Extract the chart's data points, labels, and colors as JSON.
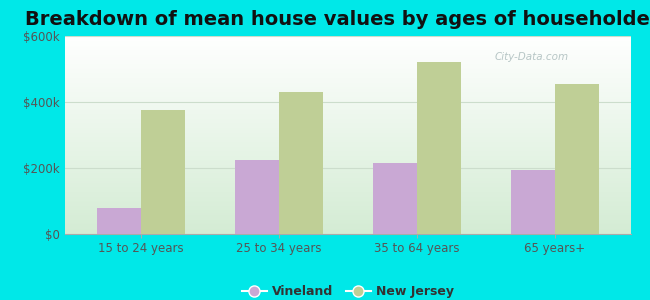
{
  "title": "Breakdown of mean house values by ages of householders",
  "categories": [
    "15 to 24 years",
    "25 to 34 years",
    "35 to 64 years",
    "65 years+"
  ],
  "vineland_values": [
    80000,
    225000,
    215000,
    195000
  ],
  "nj_values": [
    375000,
    430000,
    520000,
    455000
  ],
  "vineland_color": "#c9a8d4",
  "nj_color": "#bfcf96",
  "background_color": "#00e8e8",
  "plot_bg_top": "#ffffff",
  "plot_bg_bottom": "#d4ecd4",
  "ylim": [
    0,
    600000
  ],
  "yticks": [
    0,
    200000,
    400000,
    600000
  ],
  "ytick_labels": [
    "$0",
    "$200k",
    "$400k",
    "$600k"
  ],
  "title_fontsize": 14,
  "legend_labels": [
    "Vineland",
    "New Jersey"
  ],
  "bar_width": 0.32,
  "watermark": "City-Data.com",
  "grid_color": "#ccddcc",
  "spine_color": "#aaaaaa",
  "tick_color": "#888888",
  "label_color": "#555555"
}
